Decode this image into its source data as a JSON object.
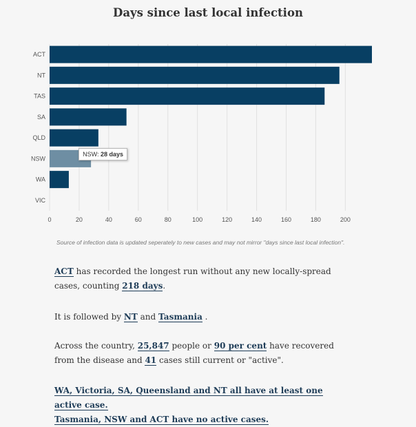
{
  "chart_data": {
    "type": "bar",
    "orientation": "horizontal",
    "title": "Days since last local infection",
    "categories": [
      "ACT",
      "NT",
      "TAS",
      "SA",
      "QLD",
      "NSW",
      "WA",
      "VIC"
    ],
    "values": [
      218,
      196,
      186,
      52,
      33,
      28,
      13,
      0
    ],
    "xlim": [
      0,
      218
    ],
    "xticks": [
      0,
      20,
      40,
      60,
      80,
      100,
      120,
      140,
      160,
      180,
      200
    ],
    "grid": true,
    "highlighted_category": "NSW",
    "colors": {
      "bar": "#083f63",
      "bar_hover": "#6e8ea3",
      "grid": "#e1e1e1"
    },
    "tooltip": {
      "label": "NSW:",
      "value": "28 days"
    }
  },
  "note": "Source of infection data is updated seperately to new cases and may not mirror \"days since last local infection\".",
  "paragraphs": {
    "p1": {
      "link1": "ACT",
      "text1": " has recorded the longest run without any new locally-spread cases, counting ",
      "link2": "218 days",
      "text2": "."
    },
    "p2": {
      "text1": "It is followed by ",
      "link1": "NT",
      "text2": " and ",
      "link2": "Tasmania",
      "text3": " ."
    },
    "p3": {
      "text1": "Across the country, ",
      "link1": "25,847",
      "text2": " people or ",
      "link2": "90 per cent",
      "text3": " have recovered from the disease and ",
      "link3": "41",
      "text4": " cases still current or \"active\"."
    },
    "p4": {
      "link1": "WA, Victoria, SA, Queensland and NT all have at least one active case.",
      "link2": "Tasmania, NSW and ACT have no active cases."
    }
  }
}
